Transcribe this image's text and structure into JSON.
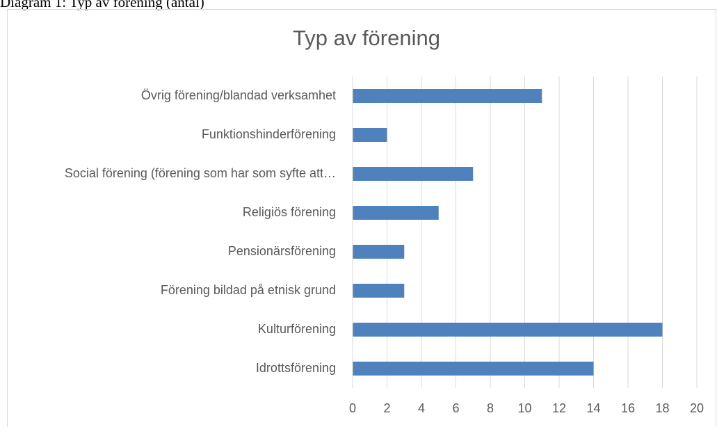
{
  "caption": "Diagram 1: Typ av förening (antal)",
  "chart_data": {
    "type": "bar",
    "orientation": "horizontal",
    "title": "Typ av förening",
    "categories": [
      "Övrig förening/blandad verksamhet",
      "Funktionshinderförening",
      "Social förening (förening som har som syfte att…",
      "Religiös förening",
      "Pensionärsförening",
      "Förening bildad på etnisk grund",
      "Kulturförening",
      "Idrottsförening"
    ],
    "values": [
      11,
      2,
      7,
      5,
      3,
      3,
      18,
      14
    ],
    "color": "#4f81bd",
    "xlim": [
      0,
      20
    ],
    "xticks": [
      0,
      2,
      4,
      6,
      8,
      10,
      12,
      14,
      16,
      18,
      20
    ],
    "grid": true
  }
}
